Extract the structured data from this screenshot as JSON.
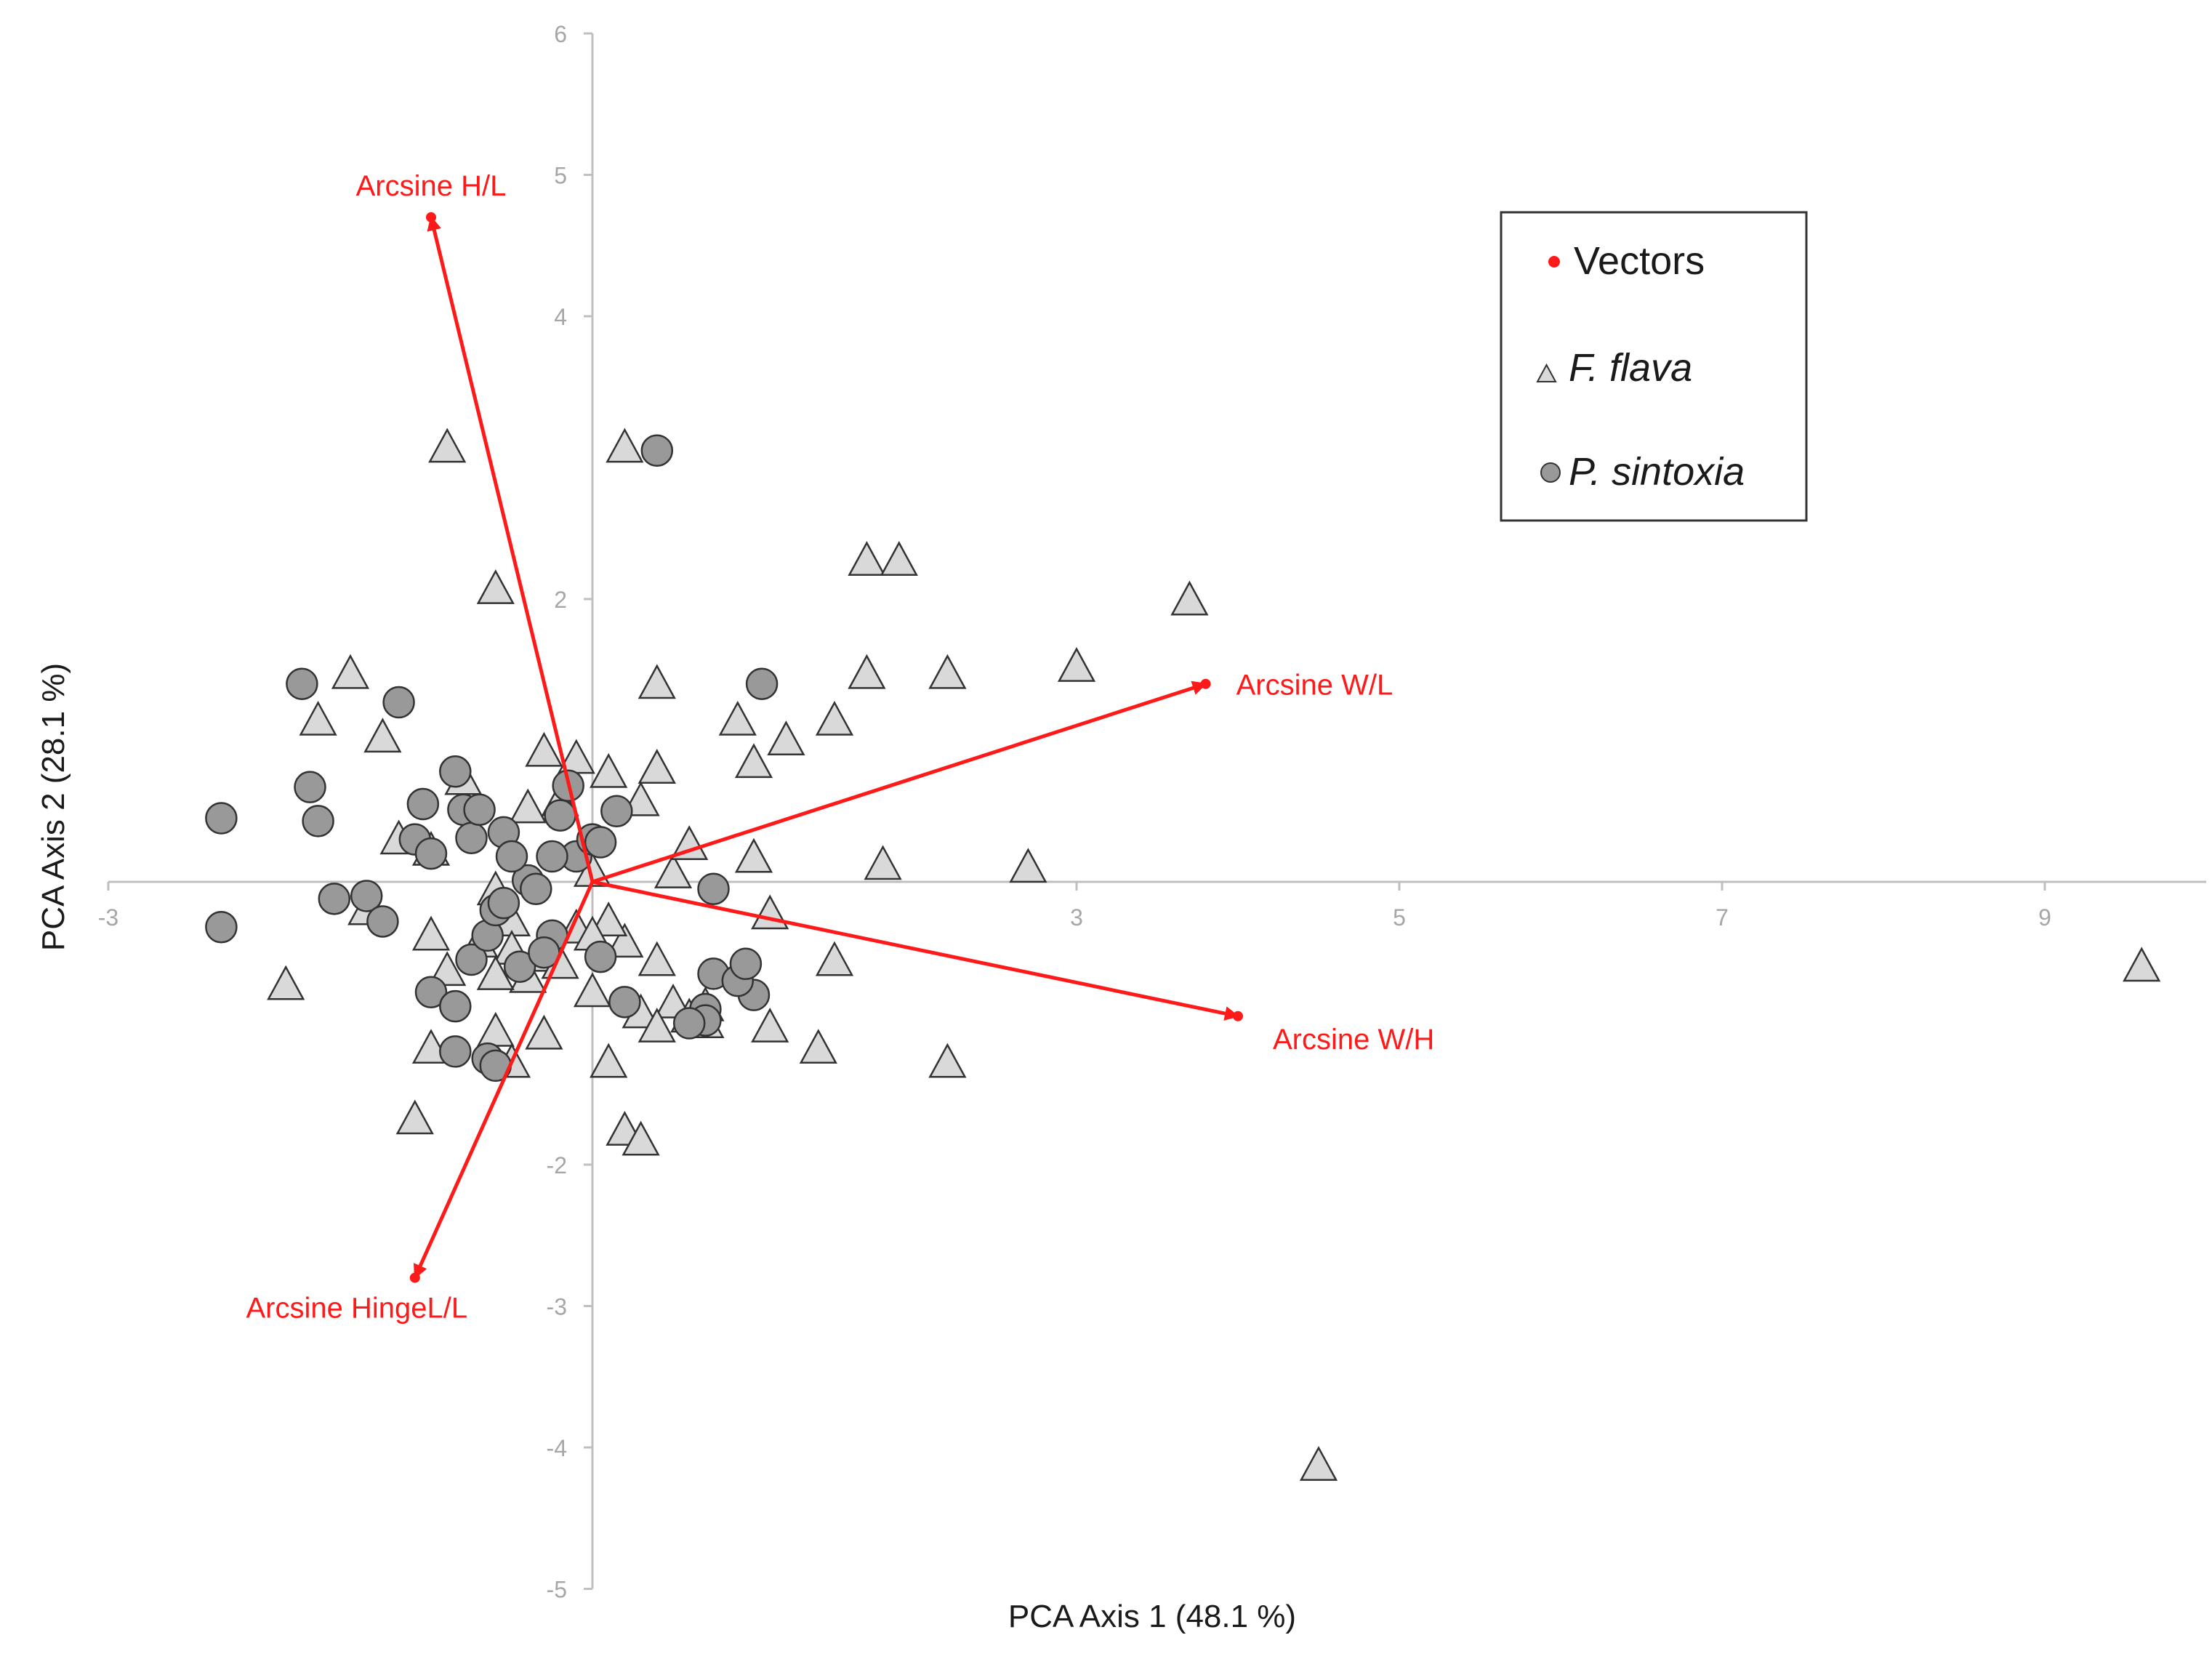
{
  "chart_data": {
    "type": "scatter",
    "title": "",
    "xlabel": "PCA Axis 1 (48.1 %)",
    "ylabel": "PCA Axis 2 (28.1 %)",
    "xlim": [
      -3,
      10
    ],
    "ylim": [
      -5,
      6
    ],
    "xticks": [
      -3,
      3,
      5,
      7,
      9
    ],
    "yticks": [
      6,
      5,
      4,
      2,
      -2,
      -3,
      -4,
      -5
    ],
    "grid": false,
    "legend_position": "top-right",
    "legend": [
      {
        "label": "Vectors",
        "marker": "dot",
        "color": "#ff1a1a"
      },
      {
        "label": "F. flava",
        "marker": "triangle",
        "color": "#d9d9d9",
        "italic_part": "F. flava"
      },
      {
        "label": "P. sintoxia",
        "marker": "circle",
        "color": "#999999",
        "italic_part": "P. sintoxia"
      }
    ],
    "vectors": [
      {
        "name": "Arcsine H/L",
        "x": -1.0,
        "y": 4.7
      },
      {
        "name": "Arcsine W/L",
        "x": 3.8,
        "y": 1.4
      },
      {
        "name": "Arcsine W/H",
        "x": 4.0,
        "y": -0.95
      },
      {
        "name": "Arcsine HingeL/L",
        "x": -1.1,
        "y": -2.8
      }
    ],
    "series": [
      {
        "name": "F. flava",
        "marker": "triangle",
        "x": [
          -0.9,
          0.2,
          -0.6,
          1.7,
          1.9,
          3.7,
          0.4,
          1.7,
          2.2,
          3.0,
          -1.5,
          -1.7,
          -1.3,
          0.9,
          0.4,
          1.5,
          1.0,
          1.2,
          0.4,
          -1.2,
          -0.3,
          -1.0,
          -0.8,
          -0.4,
          -0.2,
          -0.1,
          0.1,
          0.3,
          0.0,
          0.5,
          0.6,
          -0.6,
          -0.5,
          1.0,
          1.8,
          2.7,
          -1.4,
          -1.9,
          -1.0,
          -0.9,
          -0.7,
          -0.5,
          -0.4,
          -0.3,
          -0.2,
          -0.1,
          0.0,
          0.2,
          0.3,
          0.4,
          0.5,
          0.6,
          0.7,
          1.1,
          1.5,
          1.4,
          2.2,
          -1.0,
          -1.1,
          -0.6,
          -0.5,
          -0.3,
          0.1,
          0.2,
          0.3,
          0.4,
          0.7,
          9.6,
          4.5,
          0.1,
          0.0,
          -0.6,
          1.1
        ],
        "y": [
          3.05,
          3.05,
          2.05,
          2.25,
          2.25,
          1.97,
          1.38,
          1.45,
          1.45,
          1.5,
          1.45,
          1.12,
          1.0,
          1.12,
          0.78,
          1.12,
          0.82,
          0.98,
          0.78,
          0.28,
          0.9,
          0.2,
          0.7,
          0.5,
          0.55,
          0.85,
          0.75,
          0.55,
          0.05,
          0.04,
          0.24,
          -0.08,
          -0.3,
          0.15,
          0.1,
          0.08,
          -0.22,
          -0.75,
          -0.4,
          -0.65,
          -0.45,
          -0.5,
          -0.7,
          -0.55,
          -0.6,
          -0.35,
          -0.8,
          -0.45,
          -0.95,
          -0.58,
          -0.88,
          -0.98,
          -1.02,
          -0.25,
          -0.58,
          -1.2,
          -1.3,
          -1.2,
          -1.7,
          -1.08,
          -1.3,
          -1.1,
          -1.3,
          -1.78,
          -1.85,
          -1.05,
          -0.9,
          -0.62,
          -4.15,
          -0.3,
          -0.4,
          -0.68,
          -1.05
        ]
      },
      {
        "name": "P. sintoxia",
        "x": [
          0.4,
          -1.8,
          -1.2,
          -2.3,
          -1.75,
          -1.7,
          -2.3,
          -1.6,
          -1.4,
          -1.3,
          -1.1,
          -1.05,
          -1.0,
          -0.85,
          -0.8,
          -0.75,
          -0.7,
          -0.55,
          -0.4,
          -0.35,
          -0.25,
          -0.2,
          -0.15,
          -0.1,
          0.0,
          0.05,
          0.2,
          0.7,
          1.0,
          0.75,
          0.9,
          0.95,
          0.75,
          -0.85,
          -1.0,
          -0.85,
          -0.75,
          -0.65,
          -0.6,
          -0.55,
          -0.5,
          -0.45,
          -0.3,
          -0.25,
          0.05,
          0.15,
          0.7,
          0.6,
          -0.65,
          -0.6,
          1.05
        ],
        "y": [
          3.05,
          1.4,
          1.27,
          0.45,
          0.67,
          0.43,
          -0.32,
          -0.12,
          -0.1,
          -0.28,
          0.3,
          0.55,
          0.2,
          0.78,
          0.51,
          0.31,
          0.51,
          0.35,
          0.01,
          -0.05,
          -0.38,
          0.47,
          0.68,
          0.18,
          0.3,
          -0.53,
          -0.85,
          -0.9,
          -0.8,
          -0.65,
          -0.7,
          -0.58,
          -0.05,
          -1.2,
          -0.78,
          -0.88,
          -0.55,
          -0.38,
          -0.2,
          -0.15,
          0.18,
          -0.6,
          -0.5,
          0.18,
          0.28,
          0.5,
          -0.98,
          -1.0,
          -1.25,
          -1.3,
          1.4
        ]
      }
    ]
  }
}
